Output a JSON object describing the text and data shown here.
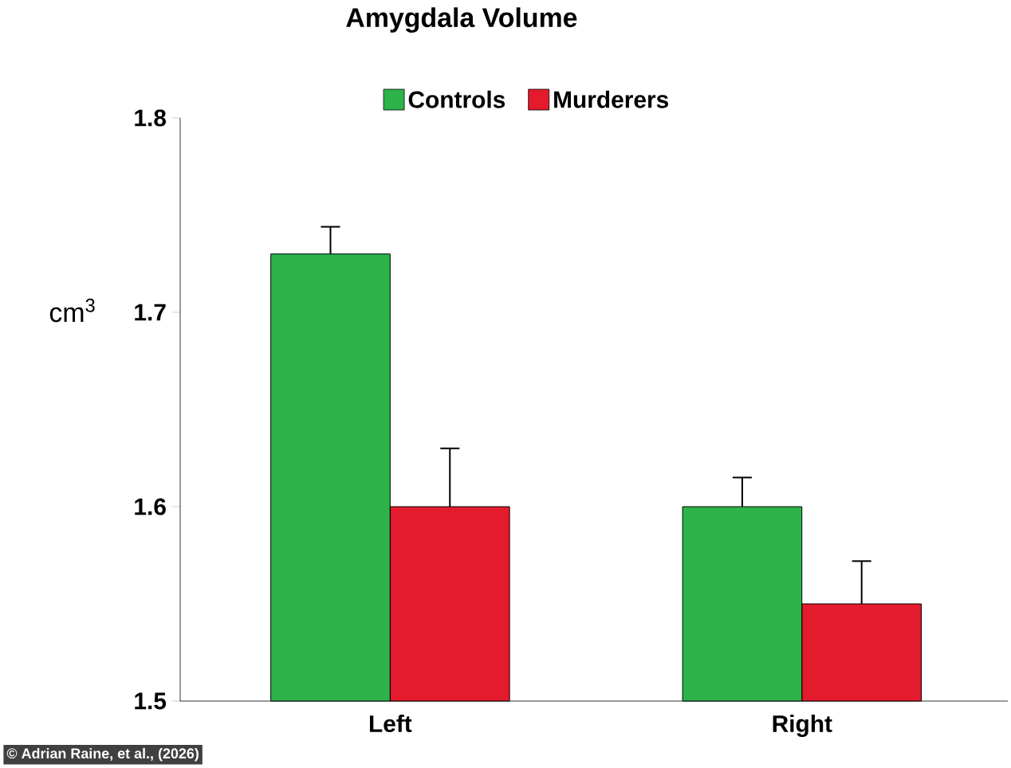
{
  "chart_data": {
    "type": "bar",
    "title": "Amygdala Volume",
    "ylabel": "cm$^{3}$",
    "categories": [
      "Left",
      "Right"
    ],
    "series": [
      {
        "name": "Controls",
        "color": "#2db34a",
        "values": [
          1.73,
          1.6
        ],
        "errors": [
          0.014,
          0.015
        ]
      },
      {
        "name": "Murderers",
        "color": "#e31b2c",
        "values": [
          1.6,
          1.55
        ],
        "errors": [
          0.03,
          0.022
        ]
      }
    ],
    "ylim": [
      1.5,
      1.8
    ],
    "yticks": [
      1.5,
      1.6,
      1.7,
      1.8
    ],
    "grid": false,
    "legend": "top",
    "annotations": [
      "© Adrian Raine, et al., (2026)"
    ]
  }
}
